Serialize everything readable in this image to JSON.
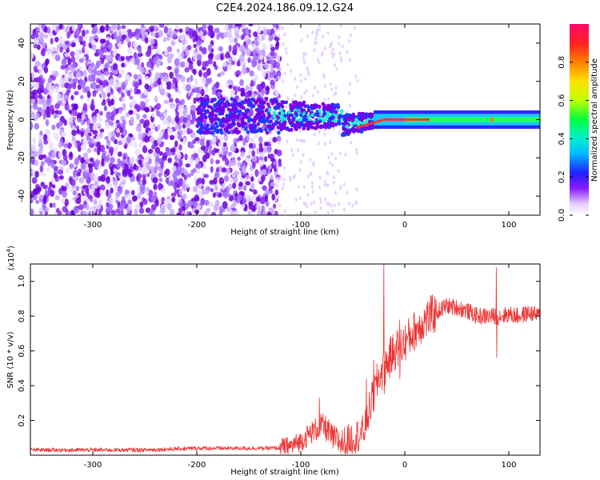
{
  "title": "C2E4.2024.186.09.12.G24",
  "colors": {
    "snr_line": "#ee3333",
    "spectrogram_low": "#d8c8ff",
    "spectrogram_mid": "#7a00e8",
    "spectrogram_core": "#1ff0d0",
    "spectrogram_peak": "#ff3030"
  },
  "chart_data": [
    {
      "type": "heatmap",
      "name": "spectrogram",
      "xlabel": "Height of straight line (km)",
      "ylabel": "Frequency (Hz)",
      "xlim": [
        -360,
        130
      ],
      "ylim": [
        -50,
        50
      ],
      "xticks": [
        -300,
        -200,
        -100,
        0,
        100
      ],
      "yticks": [
        -40,
        -20,
        0,
        20,
        40
      ],
      "description_of_structure": {
        "scattered_noise_region_km": [
          -360,
          -120
        ],
        "converging_signal_region_km": [
          -120,
          -20
        ],
        "stable_tone_region_km": [
          -20,
          130
        ],
        "stable_tone_frequency_hz": 0,
        "stable_tone_width_hz": 3
      },
      "colorbar": {
        "label": "Normalized spectral amplitude",
        "range": [
          0,
          1
        ],
        "ticks": [
          0.0,
          0.2,
          0.4,
          0.6,
          0.8
        ],
        "tick_labels": [
          "0.0",
          "0.2",
          "0.4",
          "0.6",
          "0.8"
        ]
      }
    },
    {
      "type": "line",
      "name": "snr",
      "xlabel": "Height of straight line (km)",
      "ylabel": "SNR (10 * v/v)",
      "scale_label": "(x10",
      "scale_exponent": "4",
      "xlim": [
        -360,
        130
      ],
      "ylim": [
        0,
        1.1
      ],
      "xticks": [
        -300,
        -200,
        -100,
        0,
        100
      ],
      "yticks": [
        0.2,
        0.4,
        0.6,
        0.8,
        1.0
      ],
      "ytick_labels": [
        "0.2",
        "0.4",
        "0.6",
        "0.8",
        "1.0"
      ],
      "anchors": [
        [
          -360,
          0.03
        ],
        [
          -300,
          0.03
        ],
        [
          -250,
          0.03
        ],
        [
          -200,
          0.04
        ],
        [
          -150,
          0.04
        ],
        [
          -120,
          0.04
        ],
        [
          -110,
          0.05
        ],
        [
          -100,
          0.08
        ],
        [
          -90,
          0.13
        ],
        [
          -80,
          0.17
        ],
        [
          -75,
          0.15
        ],
        [
          -70,
          0.1
        ],
        [
          -60,
          0.07
        ],
        [
          -50,
          0.1
        ],
        [
          -40,
          0.13
        ],
        [
          -30,
          0.35
        ],
        [
          -25,
          0.45
        ],
        [
          -20,
          0.5
        ],
        [
          -10,
          0.6
        ],
        [
          0,
          0.65
        ],
        [
          10,
          0.72
        ],
        [
          20,
          0.78
        ],
        [
          30,
          0.82
        ],
        [
          40,
          0.86
        ],
        [
          50,
          0.85
        ],
        [
          60,
          0.83
        ],
        [
          70,
          0.8
        ],
        [
          80,
          0.8
        ],
        [
          90,
          0.8
        ],
        [
          100,
          0.81
        ],
        [
          110,
          0.8
        ],
        [
          120,
          0.82
        ],
        [
          130,
          0.8
        ]
      ],
      "spikes": [
        [
          -20,
          1.1
        ],
        [
          -30,
          0.55
        ],
        [
          -37,
          0.44
        ],
        [
          -82,
          0.33
        ],
        [
          88,
          1.08
        ],
        [
          -5,
          0.78
        ]
      ]
    }
  ]
}
